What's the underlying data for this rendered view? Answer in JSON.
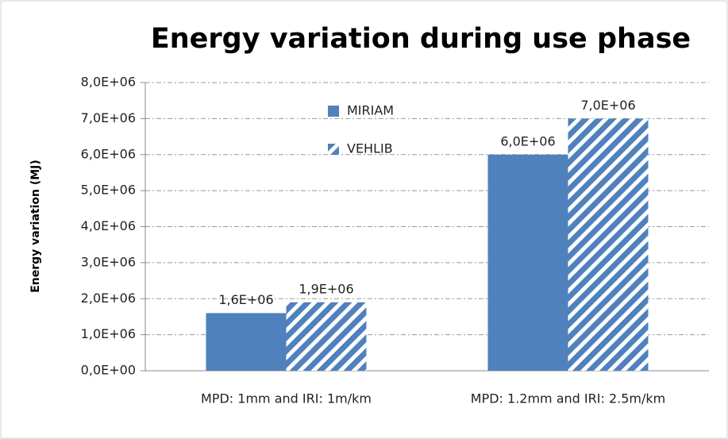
{
  "chart_data": {
    "type": "bar",
    "title": "Energy variation during use phase",
    "ylabel": "Energy variation (MJ)",
    "categories": [
      "MPD: 1mm and IRI: 1m/km",
      "MPD: 1.2mm and IRI: 2.5m/km"
    ],
    "series": [
      {
        "name": "MIRIAM",
        "color": "#4f81bd",
        "hatch": false,
        "values": [
          1600000,
          6000000
        ],
        "value_labels": [
          "1,6E+06",
          "6,0E+06"
        ]
      },
      {
        "name": "VEHLIB",
        "color": "#4f81bd",
        "hatch": true,
        "values": [
          1900000,
          7000000
        ],
        "value_labels": [
          "1,9E+06",
          "7,0E+06"
        ]
      }
    ],
    "ylim": [
      0,
      8000000
    ],
    "yticks": [
      {
        "value": 0,
        "label": "0,0E+00"
      },
      {
        "value": 1000000,
        "label": "1,0E+06"
      },
      {
        "value": 2000000,
        "label": "2,0E+06"
      },
      {
        "value": 3000000,
        "label": "3,0E+06"
      },
      {
        "value": 4000000,
        "label": "4,0E+06"
      },
      {
        "value": 5000000,
        "label": "5,0E+06"
      },
      {
        "value": 6000000,
        "label": "6,0E+06"
      },
      {
        "value": 7000000,
        "label": "7,0E+06"
      },
      {
        "value": 8000000,
        "label": "8,0E+06"
      }
    ],
    "grid": true
  }
}
